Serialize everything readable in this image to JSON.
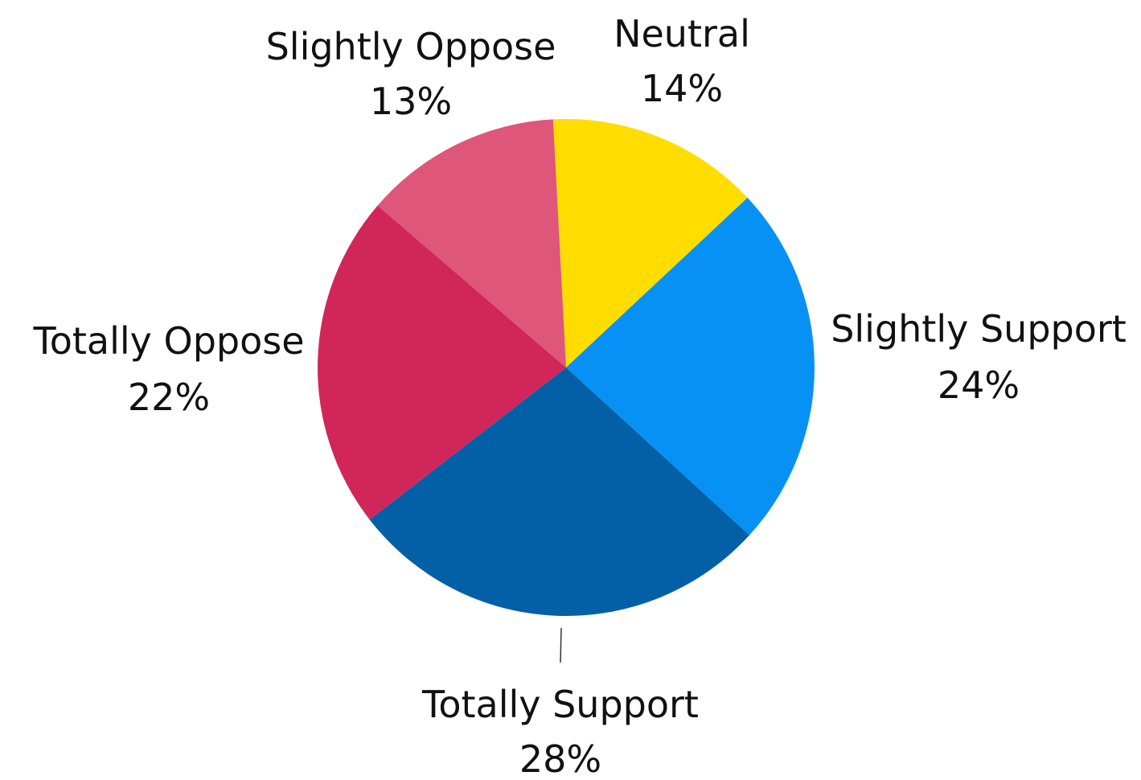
{
  "chart_data": {
    "type": "pie",
    "title": "",
    "start_angle_deg": -3,
    "direction": "clockwise",
    "slices": [
      {
        "label": "Neutral",
        "value": 14,
        "value_label": "14%",
        "color": "#FFDD00"
      },
      {
        "label": "Slightly Support",
        "value": 24,
        "value_label": "24%",
        "color": "#0791F5"
      },
      {
        "label": "Totally Support",
        "value": 28,
        "value_label": "28%",
        "color": "#0460A6"
      },
      {
        "label": "Totally Oppose",
        "value": 22,
        "value_label": "22%",
        "color": "#D12659"
      },
      {
        "label": "Slightly Oppose",
        "value": 13,
        "value_label": "13%",
        "color": "#DE567A"
      }
    ]
  }
}
